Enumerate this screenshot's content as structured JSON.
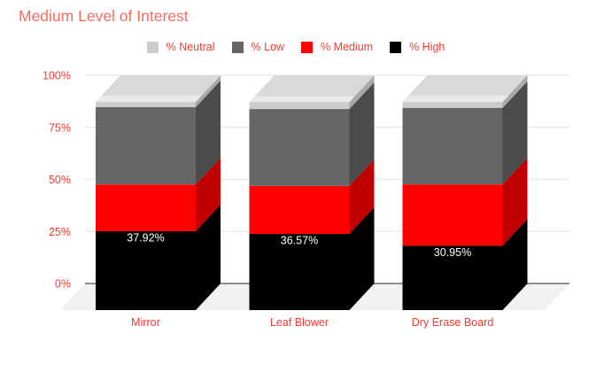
{
  "title": {
    "text": "Medium Level of Interest"
  },
  "legend": {
    "items": [
      {
        "label": "% Neutral",
        "color": "#CCCCCC"
      },
      {
        "label": "% Low",
        "color": "#666666"
      },
      {
        "label": "% Medium",
        "color": "#FF0000"
      },
      {
        "label": "% High",
        "color": "#000000"
      }
    ]
  },
  "chart_data": {
    "type": "bar",
    "variant": "3d-stacked-100-percent-column",
    "title": "Medium Level of Interest",
    "categories": [
      "Mirror",
      "Leaf Blower",
      "Dry Erase Board"
    ],
    "series": [
      {
        "name": "% High",
        "color": "#000000",
        "side_color": "#000000",
        "values": [
          37.92,
          36.57,
          30.95
        ],
        "data_labels": [
          "37.92%",
          "36.57%",
          "30.95%"
        ]
      },
      {
        "name": "% Medium",
        "color": "#FF0000",
        "side_color": "#C00000",
        "values": [
          22.4,
          23.1,
          29.4
        ]
      },
      {
        "name": "% Low",
        "color": "#666666",
        "side_color": "#4B4B4B",
        "values": [
          37.2,
          36.9,
          36.8
        ]
      },
      {
        "name": "% Neutral",
        "color": "#CCCCCC",
        "side_color": "#A8A8A8",
        "top_color": "#D9D9D9",
        "values": [
          2.5,
          3.4,
          2.9
        ]
      }
    ],
    "stack_order": "first-series-at-bottom",
    "y_ticks": [
      "0%",
      "25%",
      "50%",
      "75%",
      "100%"
    ],
    "ylim": [
      0,
      100
    ],
    "grid": true,
    "legend_position": "top"
  },
  "colors": {
    "title_text": "#FA6A5E",
    "axis_text": "#F8382C",
    "legend_text": "#F8382C",
    "data_label_text": "#FFFFFF",
    "grid_line": "#E7E7E7",
    "base_line": "#8F8F8F",
    "floor": "#F1F1F1",
    "top_bevel": "#EAEAEA",
    "background": "#FFFFFF"
  }
}
